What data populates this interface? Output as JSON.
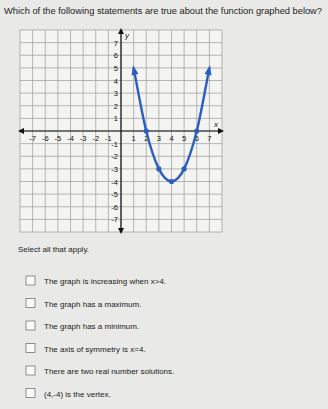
{
  "question": "Which of the following statements are true about the function graphed below?",
  "chart_data": {
    "type": "line",
    "x_label": "x",
    "y_label": "y",
    "x": [
      1,
      2,
      3,
      4,
      5,
      6,
      7
    ],
    "values": [
      5,
      0,
      -3,
      -4,
      -3,
      0,
      5
    ],
    "color": "#2a5fc0",
    "marker": "circle",
    "grid": true,
    "xlim": [
      -8,
      8
    ],
    "ylim": [
      -8,
      8
    ],
    "xticks": [
      -7,
      -6,
      -5,
      -4,
      -3,
      -2,
      -1,
      1,
      2,
      3,
      4,
      5,
      6,
      7
    ],
    "yticks": [
      -7,
      -6,
      -5,
      -4,
      -3,
      -2,
      -1,
      1,
      2,
      3,
      4,
      5,
      6,
      7
    ]
  },
  "instruction": "Select all that apply.",
  "options": [
    "The graph is increasing when x>4.",
    "The graph has a maximum.",
    "The graph has a minimum.",
    "The axis of symmetry is x=4.",
    "There are two real number solutions.",
    "(4,-4) is the vertex."
  ]
}
